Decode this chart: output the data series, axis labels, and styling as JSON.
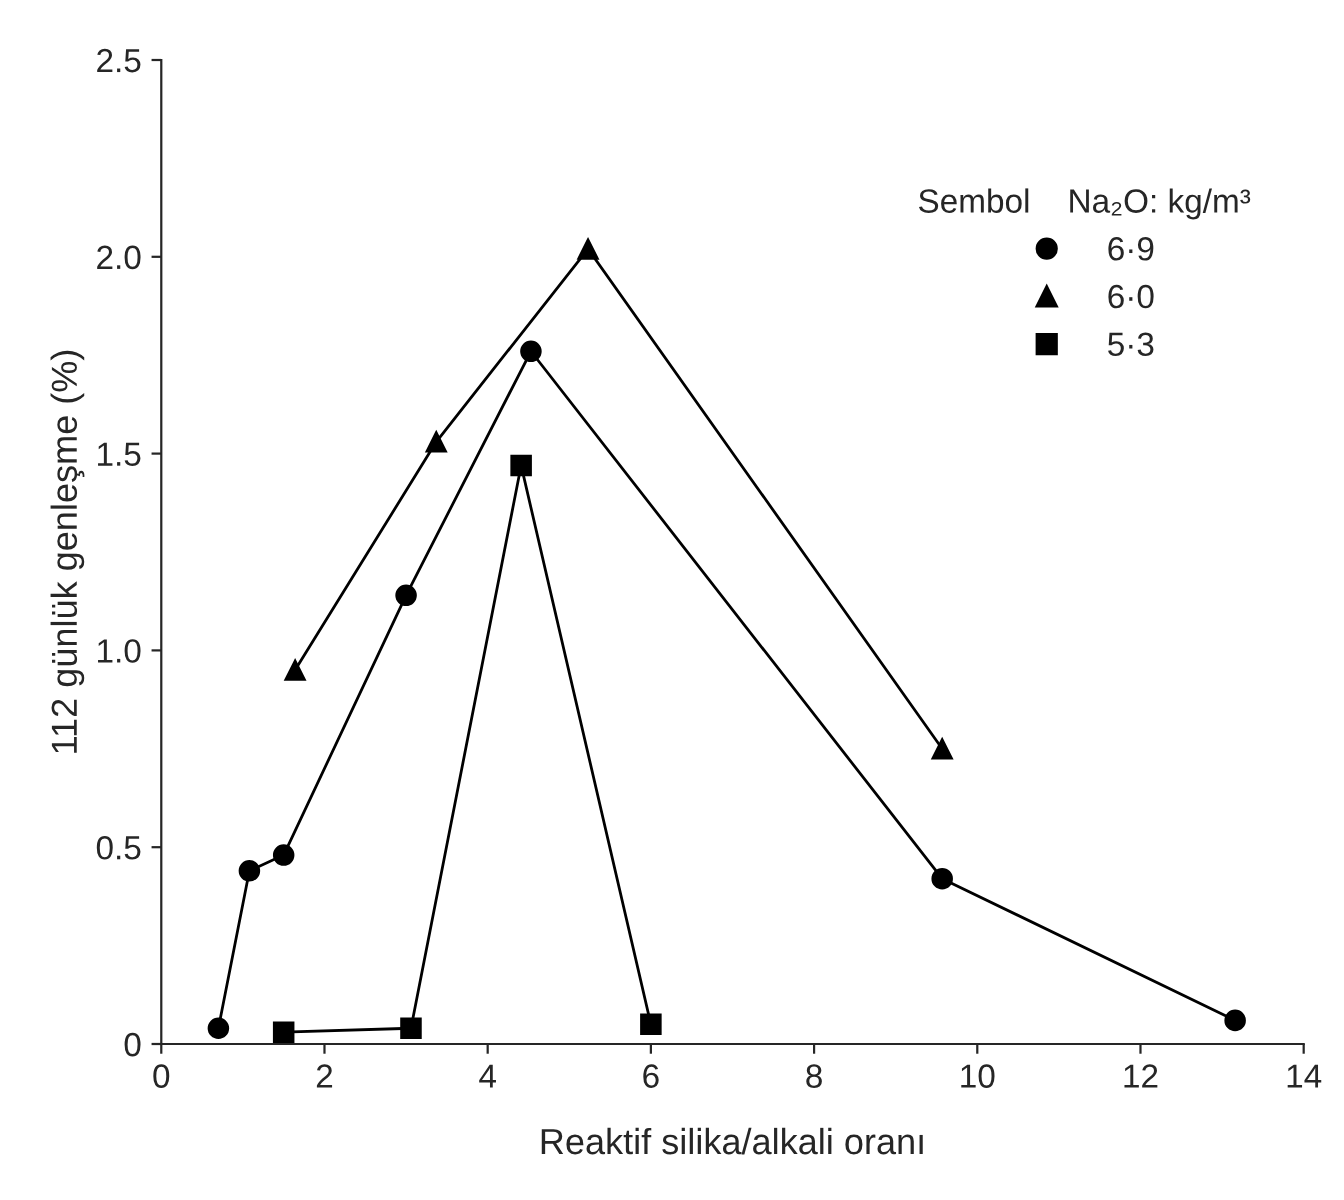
{
  "chart_data": {
    "type": "line",
    "xlabel": "Reaktif silika/alkali oranı",
    "ylabel": "112 günlük genleşme (%)",
    "legend_title": "Sembol    Na₂O: kg/m³",
    "legend": "top right",
    "grid": false,
    "xlim": [
      0,
      14
    ],
    "xticks": [
      0,
      2,
      4,
      6,
      8,
      10,
      12,
      14
    ],
    "ylim": [
      0,
      2.5
    ],
    "yticks": [
      0,
      0.5,
      {
        "value": 1.0,
        "label": "1.0"
      },
      1.5,
      {
        "value": 2.0,
        "label": "2.0"
      },
      2.5
    ],
    "series": [
      {
        "name": "6·9",
        "color": "#000000",
        "marker": "circle",
        "x": [
          0.7,
          1.08,
          1.5,
          3.0,
          4.53,
          9.57,
          13.16
        ],
        "values": [
          0.04,
          0.44,
          0.48,
          1.14,
          1.76,
          0.42,
          0.06
        ]
      },
      {
        "name": "6·0",
        "color": "#000000",
        "marker": "triangle",
        "x": [
          1.64,
          3.37,
          5.23,
          9.57
        ],
        "values": [
          0.95,
          1.53,
          2.02,
          0.75
        ]
      },
      {
        "name": "5·3",
        "color": "#000000",
        "marker": "square",
        "x": [
          1.5,
          3.06,
          4.41,
          6.0
        ],
        "values": [
          0.03,
          0.04,
          1.47,
          0.05
        ]
      }
    ]
  }
}
